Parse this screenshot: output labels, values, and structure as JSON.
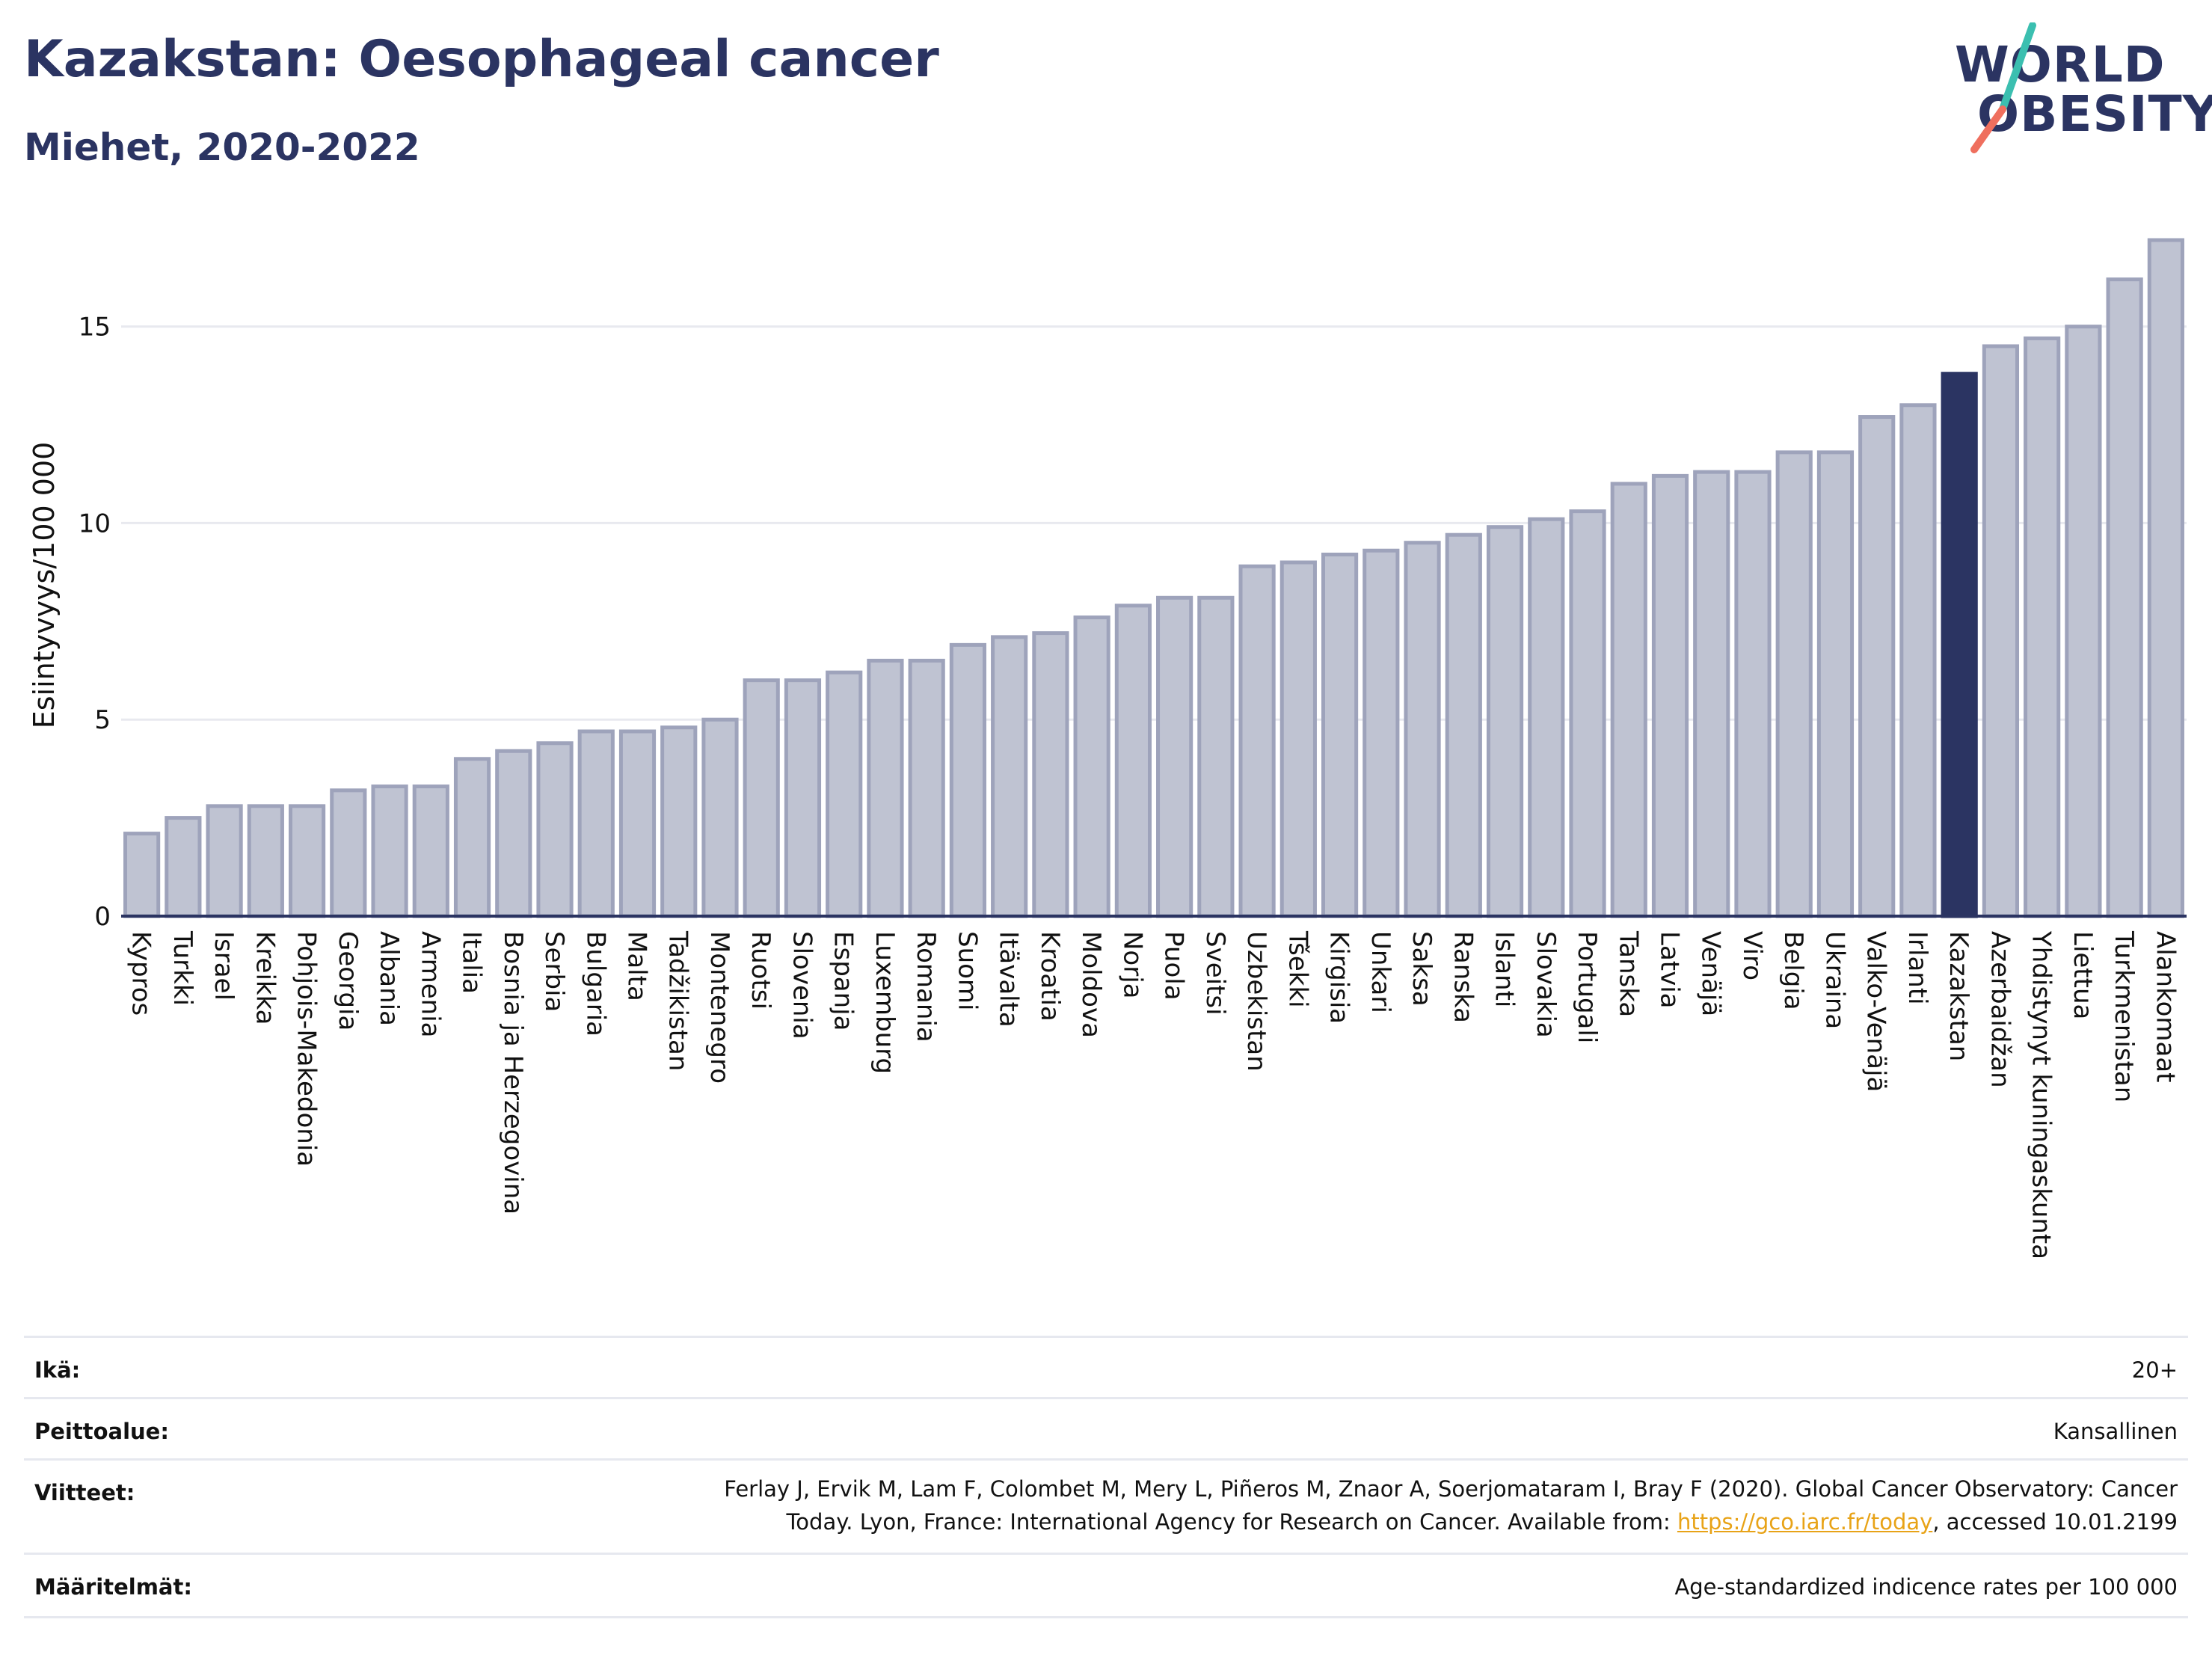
{
  "header": {
    "title": "Kazakstan: Oesophageal cancer",
    "subtitle": "Miehet, 2020-2022"
  },
  "logo": {
    "line1": "WORLD",
    "line2": "OBESITY",
    "slash_colors": [
      "#3bbfb0",
      "#ef6f5e"
    ]
  },
  "colors": {
    "bar_fill": "#bfc3d2",
    "bar_stroke": "#9ea3bb",
    "highlight": "#2b3462",
    "grid": "#e8e9ef",
    "axis": "#2b3462"
  },
  "chart_data": {
    "type": "bar",
    "ylabel": "Esiintyvyys/100 000",
    "ylim": [
      0,
      17.6
    ],
    "yticks": [
      0,
      5,
      10,
      15
    ],
    "grid": true,
    "highlight_category": "Kazakstan",
    "categories": [
      "Kypros",
      "Turkki",
      "Israel",
      "Kreikka",
      "Pohjois-Makedonia",
      "Georgia",
      "Albania",
      "Armenia",
      "Italia",
      "Bosnia ja Herzegovina",
      "Serbia",
      "Bulgaria",
      "Malta",
      "Tadžikistan",
      "Montenegro",
      "Ruotsi",
      "Slovenia",
      "Espanja",
      "Luxemburg",
      "Romania",
      "Suomi",
      "Itävalta",
      "Kroatia",
      "Moldova",
      "Norja",
      "Puola",
      "Sveitsi",
      "Uzbekistan",
      "Tšekki",
      "Kirgisia",
      "Unkari",
      "Saksa",
      "Ranska",
      "Islanti",
      "Slovakia",
      "Portugali",
      "Tanska",
      "Latvia",
      "Venäjä",
      "Viro",
      "Belgia",
      "Ukraina",
      "Valko-Venäjä",
      "Irlanti",
      "Kazakstan",
      "Azerbaidžan",
      "Yhdistynyt kuningaskunta",
      "Liettua",
      "Turkmenistan",
      "Alankomaat"
    ],
    "values": [
      2.1,
      2.5,
      2.8,
      2.8,
      2.8,
      3.2,
      3.3,
      3.3,
      4.0,
      4.2,
      4.4,
      4.7,
      4.7,
      4.8,
      5.0,
      6.0,
      6.0,
      6.2,
      6.5,
      6.5,
      6.9,
      7.1,
      7.2,
      7.6,
      7.9,
      8.1,
      8.1,
      8.9,
      9.0,
      9.2,
      9.3,
      9.5,
      9.7,
      9.9,
      10.1,
      10.3,
      11.0,
      11.2,
      11.3,
      11.3,
      11.8,
      11.8,
      12.7,
      13.0,
      13.8,
      14.5,
      14.7,
      15.0,
      16.2,
      17.2
    ]
  },
  "info": {
    "age_label": "Ikä:",
    "age_value": "20+",
    "coverage_label": "Peittoalue:",
    "coverage_value": "Kansallinen",
    "references_label": "Viitteet:",
    "references_line1": "Ferlay J, Ervik M, Lam F, Colombet M, Mery L, Piñeros M, Znaor A, Soerjomataram I, Bray F (2020). Global Cancer Observatory: Cancer",
    "references_line2_pre": "Today. Lyon, France: International Agency for Research on Cancer. Available from: ",
    "references_link": "https://gco.iarc.fr/today",
    "references_line2_post": ", accessed 10.01.2199",
    "definitions_label": "Määritelmät:",
    "definitions_value": "Age-standardized indicence rates per 100 000"
  }
}
